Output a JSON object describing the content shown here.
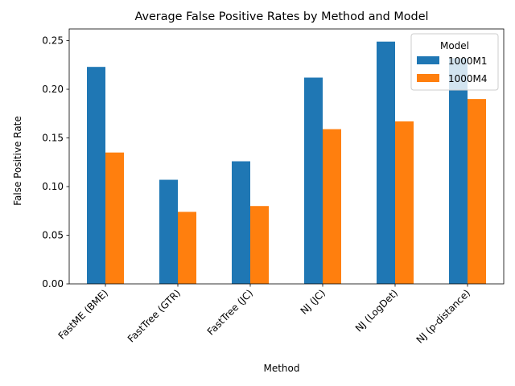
{
  "chart_data": {
    "type": "bar",
    "title": "Average False Positive Rates by Method and Model",
    "xlabel": "Method",
    "ylabel": "False Positive Rate",
    "categories": [
      "FastME (BME)",
      "FastTree (GTR)",
      "FastTree (JC)",
      "NJ (JC)",
      "NJ (LogDet)",
      "NJ (p-distance)"
    ],
    "series": [
      {
        "name": "1000M1",
        "color": "#1f77b4",
        "values": [
          0.223,
          0.107,
          0.126,
          0.212,
          0.249,
          0.232
        ]
      },
      {
        "name": "1000M4",
        "color": "#ff7f0e",
        "values": [
          0.135,
          0.074,
          0.08,
          0.159,
          0.167,
          0.19
        ]
      }
    ],
    "ylim": [
      0,
      0.262
    ],
    "yticks": [
      0.0,
      0.05,
      0.1,
      0.15,
      0.2,
      0.25
    ],
    "ytick_labels": [
      "0.00",
      "0.05",
      "0.10",
      "0.15",
      "0.20",
      "0.25"
    ],
    "grid": false,
    "legend": {
      "title": "Model",
      "placement": "top-right"
    },
    "xtick_rotation": 45
  }
}
